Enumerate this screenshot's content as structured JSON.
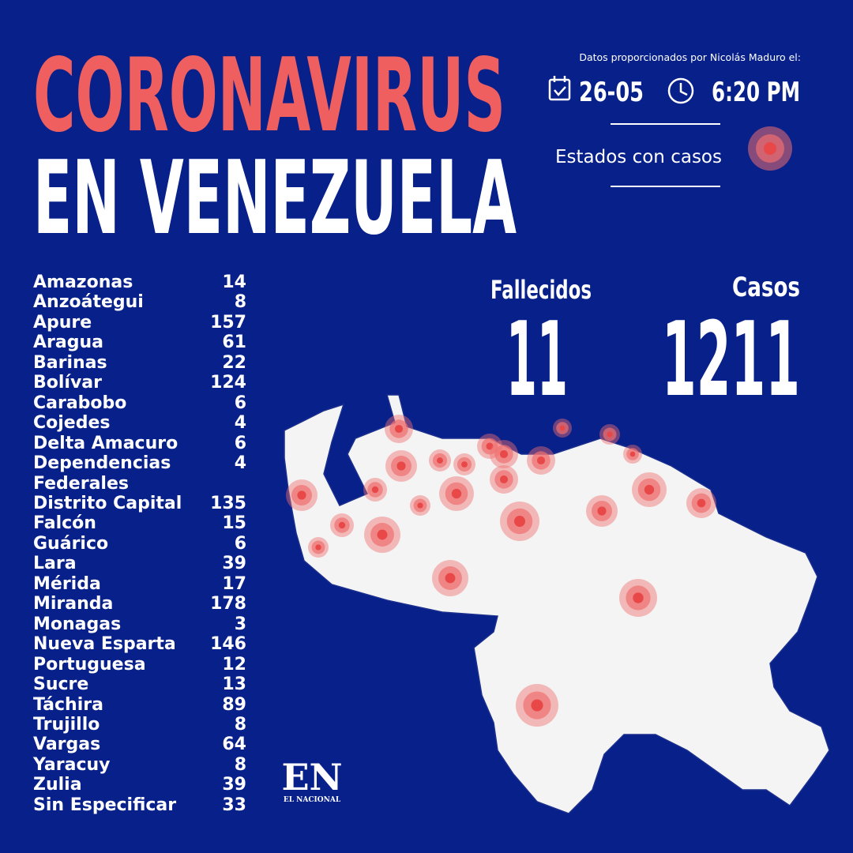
{
  "header": {
    "title_line1": "CORONAVIRUS",
    "title_line2": "EN VENEZUELA",
    "source_note": "Datos proporcionados por Nicolás Maduro el:",
    "date": "26-05",
    "time": "6:20 PM",
    "legend_label": "Estados con casos"
  },
  "states": [
    {
      "name": "Amazonas",
      "cases": 14
    },
    {
      "name": "Anzoátegui",
      "cases": 8
    },
    {
      "name": "Apure",
      "cases": 157
    },
    {
      "name": "Aragua",
      "cases": 61
    },
    {
      "name": "Barinas",
      "cases": 22
    },
    {
      "name": "Bolívar",
      "cases": 124
    },
    {
      "name": "Carabobo",
      "cases": 6
    },
    {
      "name": "Cojedes",
      "cases": 4
    },
    {
      "name": "Delta Amacuro",
      "cases": 6
    },
    {
      "name": "Dependencias Federales",
      "cases": 4
    },
    {
      "name": "Distrito Capital",
      "cases": 135
    },
    {
      "name": "Falcón",
      "cases": 15
    },
    {
      "name": "Guárico",
      "cases": 6
    },
    {
      "name": "Lara",
      "cases": 39
    },
    {
      "name": "Mérida",
      "cases": 17
    },
    {
      "name": "Miranda",
      "cases": 178
    },
    {
      "name": "Monagas",
      "cases": 3
    },
    {
      "name": "Nueva Esparta",
      "cases": 146
    },
    {
      "name": "Portuguesa",
      "cases": 12
    },
    {
      "name": "Sucre",
      "cases": 13
    },
    {
      "name": "Táchira",
      "cases": 89
    },
    {
      "name": "Trujillo",
      "cases": 8
    },
    {
      "name": "Vargas",
      "cases": 64
    },
    {
      "name": "Yaracuy",
      "cases": 8
    },
    {
      "name": "Zulia",
      "cases": 39
    },
    {
      "name": "Sin Especificar",
      "cases": 33
    }
  ],
  "stats": {
    "deaths_label": "Fallecidos",
    "deaths": 11,
    "cases_label": "Casos",
    "cases": 1211
  },
  "logo": {
    "mark": "EN",
    "name": "EL NACIONAL"
  }
}
